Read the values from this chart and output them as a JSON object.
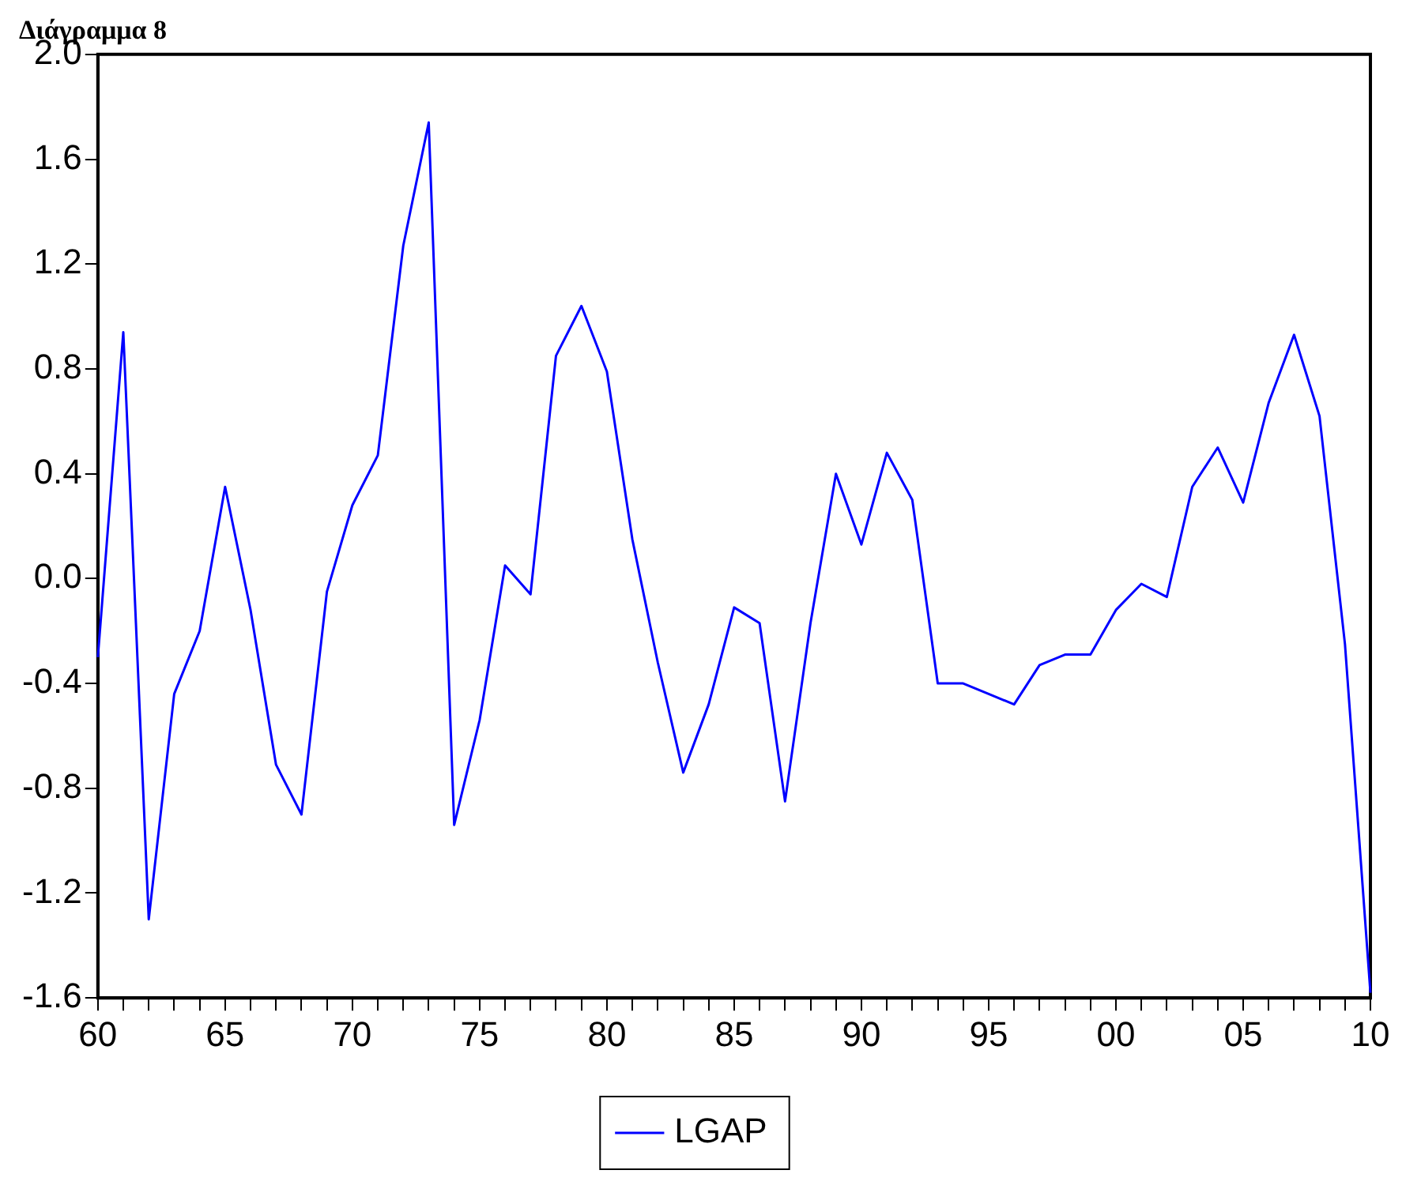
{
  "chart_data": {
    "type": "line",
    "title": "Διάγραμμα 8",
    "x": [
      1960,
      1961,
      1962,
      1963,
      1964,
      1965,
      1966,
      1967,
      1968,
      1969,
      1970,
      1971,
      1972,
      1973,
      1974,
      1975,
      1976,
      1977,
      1978,
      1979,
      1980,
      1981,
      1982,
      1983,
      1984,
      1985,
      1986,
      1987,
      1988,
      1989,
      1990,
      1991,
      1992,
      1993,
      1994,
      1995,
      1996,
      1997,
      1998,
      1999,
      2000,
      2001,
      2002,
      2003,
      2004,
      2005,
      2006,
      2007,
      2008,
      2009,
      2010
    ],
    "series": [
      {
        "name": "LGAP",
        "color": "#0000ff",
        "values": [
          -0.3,
          0.94,
          -1.3,
          -0.44,
          -0.2,
          0.35,
          -0.12,
          -0.71,
          -0.9,
          -0.05,
          0.28,
          0.47,
          1.27,
          1.74,
          -0.94,
          -0.54,
          0.05,
          -0.06,
          0.85,
          1.04,
          0.79,
          0.15,
          -0.32,
          -0.74,
          -0.48,
          -0.11,
          -0.17,
          -0.85,
          -0.17,
          0.4,
          0.13,
          0.48,
          0.3,
          -0.4,
          -0.4,
          -0.44,
          -0.48,
          -0.33,
          -0.29,
          -0.29,
          -0.12,
          -0.02,
          -0.07,
          0.35,
          0.5,
          0.29,
          0.67,
          0.93,
          0.62,
          -0.25,
          -1.58
        ]
      }
    ],
    "xlim": [
      1960,
      2010
    ],
    "xticks": [
      {
        "value": 1960,
        "label": "60"
      },
      {
        "value": 1961,
        "label": null
      },
      {
        "value": 1962,
        "label": null
      },
      {
        "value": 1963,
        "label": null
      },
      {
        "value": 1964,
        "label": null
      },
      {
        "value": 1965,
        "label": "65"
      },
      {
        "value": 1966,
        "label": null
      },
      {
        "value": 1967,
        "label": null
      },
      {
        "value": 1968,
        "label": null
      },
      {
        "value": 1969,
        "label": null
      },
      {
        "value": 1970,
        "label": "70"
      },
      {
        "value": 1971,
        "label": null
      },
      {
        "value": 1972,
        "label": null
      },
      {
        "value": 1973,
        "label": null
      },
      {
        "value": 1974,
        "label": null
      },
      {
        "value": 1975,
        "label": "75"
      },
      {
        "value": 1976,
        "label": null
      },
      {
        "value": 1977,
        "label": null
      },
      {
        "value": 1978,
        "label": null
      },
      {
        "value": 1979,
        "label": null
      },
      {
        "value": 1980,
        "label": "80"
      },
      {
        "value": 1981,
        "label": null
      },
      {
        "value": 1982,
        "label": null
      },
      {
        "value": 1983,
        "label": null
      },
      {
        "value": 1984,
        "label": null
      },
      {
        "value": 1985,
        "label": "85"
      },
      {
        "value": 1986,
        "label": null
      },
      {
        "value": 1987,
        "label": null
      },
      {
        "value": 1988,
        "label": null
      },
      {
        "value": 1989,
        "label": null
      },
      {
        "value": 1990,
        "label": "90"
      },
      {
        "value": 1991,
        "label": null
      },
      {
        "value": 1992,
        "label": null
      },
      {
        "value": 1993,
        "label": null
      },
      {
        "value": 1994,
        "label": null
      },
      {
        "value": 1995,
        "label": "95"
      },
      {
        "value": 1996,
        "label": null
      },
      {
        "value": 1997,
        "label": null
      },
      {
        "value": 1998,
        "label": null
      },
      {
        "value": 1999,
        "label": null
      },
      {
        "value": 2000,
        "label": "00"
      },
      {
        "value": 2001,
        "label": null
      },
      {
        "value": 2002,
        "label": null
      },
      {
        "value": 2003,
        "label": null
      },
      {
        "value": 2004,
        "label": null
      },
      {
        "value": 2005,
        "label": "05"
      },
      {
        "value": 2006,
        "label": null
      },
      {
        "value": 2007,
        "label": null
      },
      {
        "value": 2008,
        "label": null
      },
      {
        "value": 2009,
        "label": null
      },
      {
        "value": 2010,
        "label": "10"
      }
    ],
    "ylim": [
      -1.6,
      2.0
    ],
    "yticks": [
      {
        "value": -1.6,
        "label": "-1.6"
      },
      {
        "value": -1.2,
        "label": "-1.2"
      },
      {
        "value": -0.8,
        "label": "-0.8"
      },
      {
        "value": -0.4,
        "label": "-0.4"
      },
      {
        "value": 0,
        "label": "0.0"
      },
      {
        "value": 0.4,
        "label": "0.4"
      },
      {
        "value": 0.8,
        "label": "0.8"
      },
      {
        "value": 1.2,
        "label": "1.2"
      },
      {
        "value": 1.6,
        "label": "1.6"
      },
      {
        "value": 2,
        "label": "2.0"
      }
    ],
    "grid": false,
    "legend": "bottom",
    "marker": "none",
    "line_style": "solid"
  }
}
